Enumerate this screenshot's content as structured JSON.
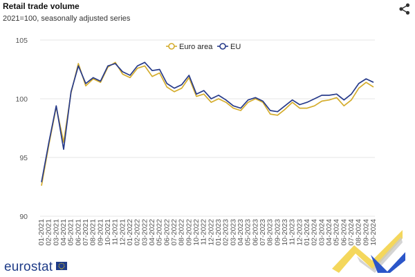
{
  "header": {
    "title": "Retail trade volume",
    "subtitle": "2021=100, seasonally adjusted series"
  },
  "icons": {
    "share": "share-icon",
    "flag": "eu-flag-icon"
  },
  "footer": {
    "brand": "eurostat"
  },
  "colors": {
    "euro_area": "#d4ac2c",
    "eu": "#263a8a",
    "grid": "#e4e4e4",
    "brand": "#1f3c88"
  },
  "chart_data": {
    "type": "line",
    "title": "Retail trade volume",
    "subtitle": "2021=100, seasonally adjusted series",
    "xlabel": "",
    "ylabel": "",
    "ylim": [
      90,
      105
    ],
    "yticks": [
      90,
      95,
      100,
      105
    ],
    "grid": true,
    "legend_position": "top-center",
    "x": [
      "01-2021",
      "02-2021",
      "03-2021",
      "04-2021",
      "05-2021",
      "06-2021",
      "07-2021",
      "08-2021",
      "09-2021",
      "10-2021",
      "11-2021",
      "12-2021",
      "01-2022",
      "02-2022",
      "03-2022",
      "04-2022",
      "05-2022",
      "06-2022",
      "07-2022",
      "08-2022",
      "09-2022",
      "10-2022",
      "11-2022",
      "12-2022",
      "01-2023",
      "02-2023",
      "03-2023",
      "04-2023",
      "05-2023",
      "06-2023",
      "07-2023",
      "08-2023",
      "09-2023",
      "10-2023",
      "11-2023",
      "12-2023",
      "01-2024",
      "02-2024",
      "03-2024",
      "04-2024",
      "05-2024",
      "06-2024",
      "07-2024",
      "08-2024",
      "09-2024",
      "10-2024"
    ],
    "series": [
      {
        "name": "Euro area",
        "color": "#d4ac2c",
        "values": [
          92.6,
          96.1,
          99.3,
          96.3,
          100.5,
          103.0,
          101.1,
          101.7,
          101.4,
          102.7,
          103.1,
          102.1,
          101.8,
          102.6,
          102.8,
          101.9,
          102.2,
          101.0,
          100.6,
          100.9,
          101.8,
          100.2,
          100.4,
          99.7,
          100.0,
          99.7,
          99.2,
          99.0,
          99.7,
          100.0,
          99.7,
          98.7,
          98.6,
          99.1,
          99.7,
          99.2,
          99.2,
          99.4,
          99.8,
          99.9,
          100.1,
          99.4,
          99.9,
          100.9,
          101.4,
          101.0
        ]
      },
      {
        "name": "EU",
        "color": "#263a8a",
        "values": [
          92.9,
          96.3,
          99.4,
          95.7,
          100.6,
          102.8,
          101.3,
          101.8,
          101.5,
          102.8,
          103.0,
          102.3,
          102.0,
          102.8,
          103.1,
          102.4,
          102.5,
          101.3,
          100.9,
          101.2,
          102.0,
          100.4,
          100.7,
          100.0,
          100.3,
          99.9,
          99.4,
          99.2,
          99.9,
          100.1,
          99.8,
          99.0,
          98.9,
          99.4,
          99.9,
          99.5,
          99.7,
          100.0,
          100.3,
          100.3,
          100.4,
          99.9,
          100.4,
          101.3,
          101.7,
          101.4
        ]
      }
    ]
  }
}
